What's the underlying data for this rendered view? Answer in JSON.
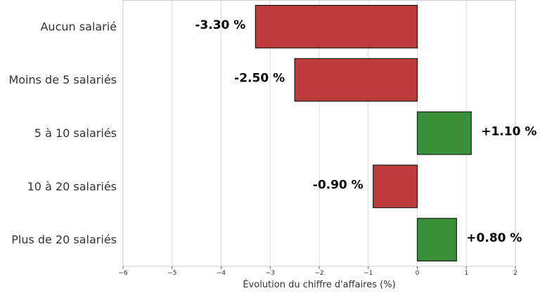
{
  "chart_data": {
    "type": "bar",
    "orientation": "horizontal",
    "title": "",
    "xlabel": "Évolution du chiffre d'affaires (%)",
    "ylabel": "",
    "categories": [
      "Aucun salarié",
      "Moins de 5 salariés",
      "5 à 10 salariés",
      "10 à 20 salariés",
      "Plus de 20 salariés"
    ],
    "values": [
      -3.3,
      -2.5,
      1.1,
      -0.9,
      0.8
    ],
    "data_labels": [
      "-3.30 %",
      "-2.50 %",
      "+1.10 %",
      "-0.90 %",
      "+0.80 %"
    ],
    "xlim": [
      -6,
      2
    ],
    "xticks": [
      -6,
      -5,
      -4,
      -3,
      -2,
      -1,
      0,
      1,
      2
    ],
    "xtick_labels": [
      "−6",
      "−5",
      "−4",
      "−3",
      "−2",
      "−1",
      "0",
      "1",
      "2"
    ],
    "grid": "vertical",
    "colors": {
      "negative": "#bc3b3b",
      "positive": "#3a913a",
      "edge": "#1a1a1a",
      "grid": "#dddddd"
    }
  }
}
